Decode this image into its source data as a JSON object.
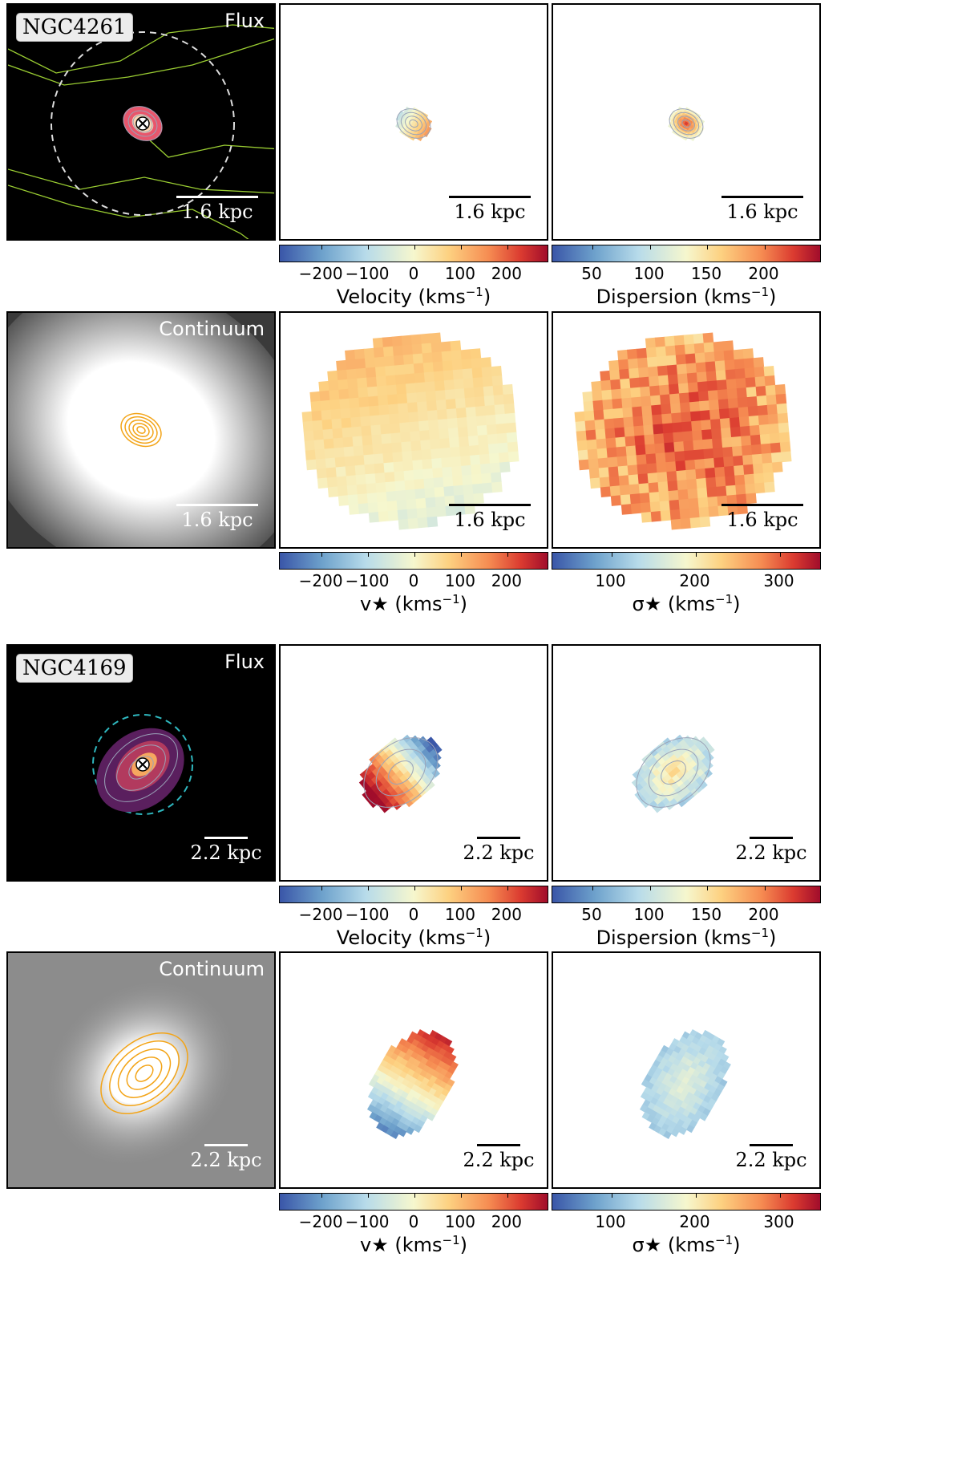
{
  "galaxies": [
    {
      "name": "NGC4261",
      "flux_label": "Flux",
      "continuum_label": "Continuum",
      "scale_text": "1.6 kpc",
      "gas_velocity": {
        "ticks": [
          "−200",
          "−100",
          "0",
          "100",
          "200"
        ],
        "label": "Velocity (kms",
        "sup": "−1",
        "close": ")"
      },
      "gas_dispersion": {
        "ticks": [
          "50",
          "100",
          "150",
          "200"
        ],
        "label": "Dispersion (kms",
        "sup": "−1",
        "close": ")"
      },
      "stellar_velocity": {
        "ticks": [
          "−200",
          "−100",
          "0",
          "100",
          "200"
        ],
        "label": "v★ (kms",
        "sup": "−1",
        "close": ")"
      },
      "stellar_dispersion": {
        "ticks": [
          "100",
          "200",
          "300"
        ],
        "label": "σ★ (kms",
        "sup": "−1",
        "close": ")"
      }
    },
    {
      "name": "NGC4169",
      "flux_label": "Flux",
      "continuum_label": "Continuum",
      "scale_text": "2.2 kpc",
      "gas_velocity": {
        "ticks": [
          "−200",
          "−100",
          "0",
          "100",
          "200"
        ],
        "label": "Velocity (kms",
        "sup": "−1",
        "close": ")"
      },
      "gas_dispersion": {
        "ticks": [
          "50",
          "100",
          "150",
          "200"
        ],
        "label": "Dispersion (kms",
        "sup": "−1",
        "close": ")"
      },
      "stellar_velocity": {
        "ticks": [
          "−200",
          "−100",
          "0",
          "100",
          "200"
        ],
        "label": "v★ (kms",
        "sup": "−1",
        "close": ")"
      },
      "stellar_dispersion": {
        "ticks": [
          "100",
          "200",
          "300"
        ],
        "label": "σ★ (kms",
        "sup": "−1",
        "close": ")"
      }
    }
  ],
  "colormap": [
    "#3a56a8",
    "#6ea2cc",
    "#b7dbea",
    "#f6f7ce",
    "#fdd181",
    "#f68c52",
    "#db3b30",
    "#a10d2b"
  ],
  "contour_colors": {
    "gas": "#9aa3b8",
    "continuum": "#f3a417",
    "fov": "#9acd32"
  }
}
